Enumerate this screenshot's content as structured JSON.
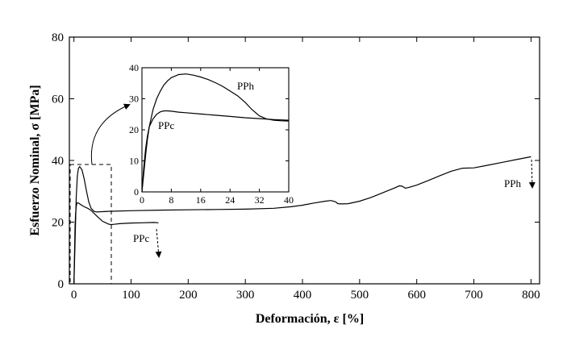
{
  "chart_data": [
    {
      "type": "line",
      "title": "",
      "xlabel": "Deformación, ε [%]",
      "ylabel": "Esfuerzo Nominal, σ [MPa]",
      "xlim": [
        -8,
        815
      ],
      "ylim": [
        0,
        80
      ],
      "xticks": [
        0,
        100,
        200,
        300,
        400,
        500,
        600,
        700,
        800
      ],
      "yticks": [
        0,
        20,
        40,
        60,
        80
      ],
      "grid": false,
      "legend": "none",
      "series": [
        {
          "name": "PPh",
          "x": [
            0,
            2,
            4,
            6,
            8,
            10,
            14,
            18,
            22,
            26,
            30,
            35,
            40,
            60,
            100,
            150,
            200,
            250,
            300,
            350,
            380,
            400,
            420,
            440,
            450,
            458,
            462,
            470,
            480,
            500,
            520,
            540,
            560,
            570,
            575,
            580,
            585,
            600,
            620,
            640,
            660,
            680,
            700,
            720,
            750,
            780,
            800
          ],
          "y": [
            0,
            14,
            28,
            35,
            37.5,
            38,
            37,
            34,
            30,
            26.5,
            24.5,
            23.5,
            23.3,
            23.5,
            23.7,
            23.9,
            24.0,
            24.1,
            24.2,
            24.5,
            25.0,
            25.5,
            26.2,
            26.8,
            27.0,
            26.6,
            26.0,
            25.9,
            26.0,
            26.8,
            28.0,
            29.5,
            31.0,
            31.8,
            31.6,
            31.0,
            31.2,
            32.0,
            33.5,
            35.0,
            36.5,
            37.5,
            37.6,
            38.3,
            39.4,
            40.5,
            41.2
          ]
        },
        {
          "name": "PPc",
          "x": [
            0,
            1,
            2,
            3,
            4,
            5,
            6,
            8,
            10,
            14,
            18,
            24,
            30,
            40,
            50,
            60,
            65,
            70,
            80,
            100,
            120,
            140,
            148
          ],
          "y": [
            0,
            10,
            19,
            23,
            25,
            26,
            26.3,
            26.2,
            25.9,
            25.4,
            25.0,
            24.5,
            23.8,
            22.0,
            20.3,
            19.4,
            19.2,
            19.3,
            19.5,
            19.7,
            19.8,
            19.9,
            19.8
          ]
        }
      ],
      "annotations": [
        {
          "text": "PPh"
        },
        {
          "text": "PPc"
        }
      ]
    },
    {
      "type": "line",
      "title": "",
      "xlabel": "",
      "ylabel": "",
      "xlim": [
        0,
        40
      ],
      "ylim": [
        0,
        40
      ],
      "xticks": [
        0,
        8,
        16,
        24,
        32,
        40
      ],
      "yticks": [
        0,
        10,
        20,
        30,
        40
      ],
      "grid": false,
      "legend": "none",
      "series": [
        {
          "name": "PPh",
          "x": [
            0,
            0.5,
            1,
            1.5,
            2,
            3,
            4,
            5,
            6,
            7,
            8,
            10,
            12,
            14,
            16,
            18,
            20,
            22,
            24,
            26,
            28,
            30,
            32,
            34,
            36,
            38,
            40
          ],
          "y": [
            0,
            6,
            12,
            17,
            21,
            26.5,
            30,
            32.5,
            34.5,
            35.8,
            36.8,
            37.8,
            38.0,
            37.6,
            37.0,
            36.2,
            35.2,
            34.0,
            32.5,
            31.0,
            29.0,
            26.5,
            24.5,
            23.5,
            23.1,
            22.9,
            22.8
          ]
        },
        {
          "name": "PPc",
          "x": [
            0,
            0.5,
            1,
            1.5,
            2,
            3,
            4,
            5,
            6,
            7,
            8,
            10,
            12,
            16,
            20,
            24,
            28,
            32,
            36,
            40
          ],
          "y": [
            0,
            8,
            14,
            18,
            21,
            23.5,
            25,
            25.8,
            26.1,
            26.1,
            26.0,
            25.7,
            25.5,
            25.1,
            24.7,
            24.3,
            23.9,
            23.6,
            23.3,
            23.1
          ]
        }
      ],
      "annotations": [
        {
          "text": "PPh"
        },
        {
          "text": "PPc"
        }
      ]
    }
  ]
}
